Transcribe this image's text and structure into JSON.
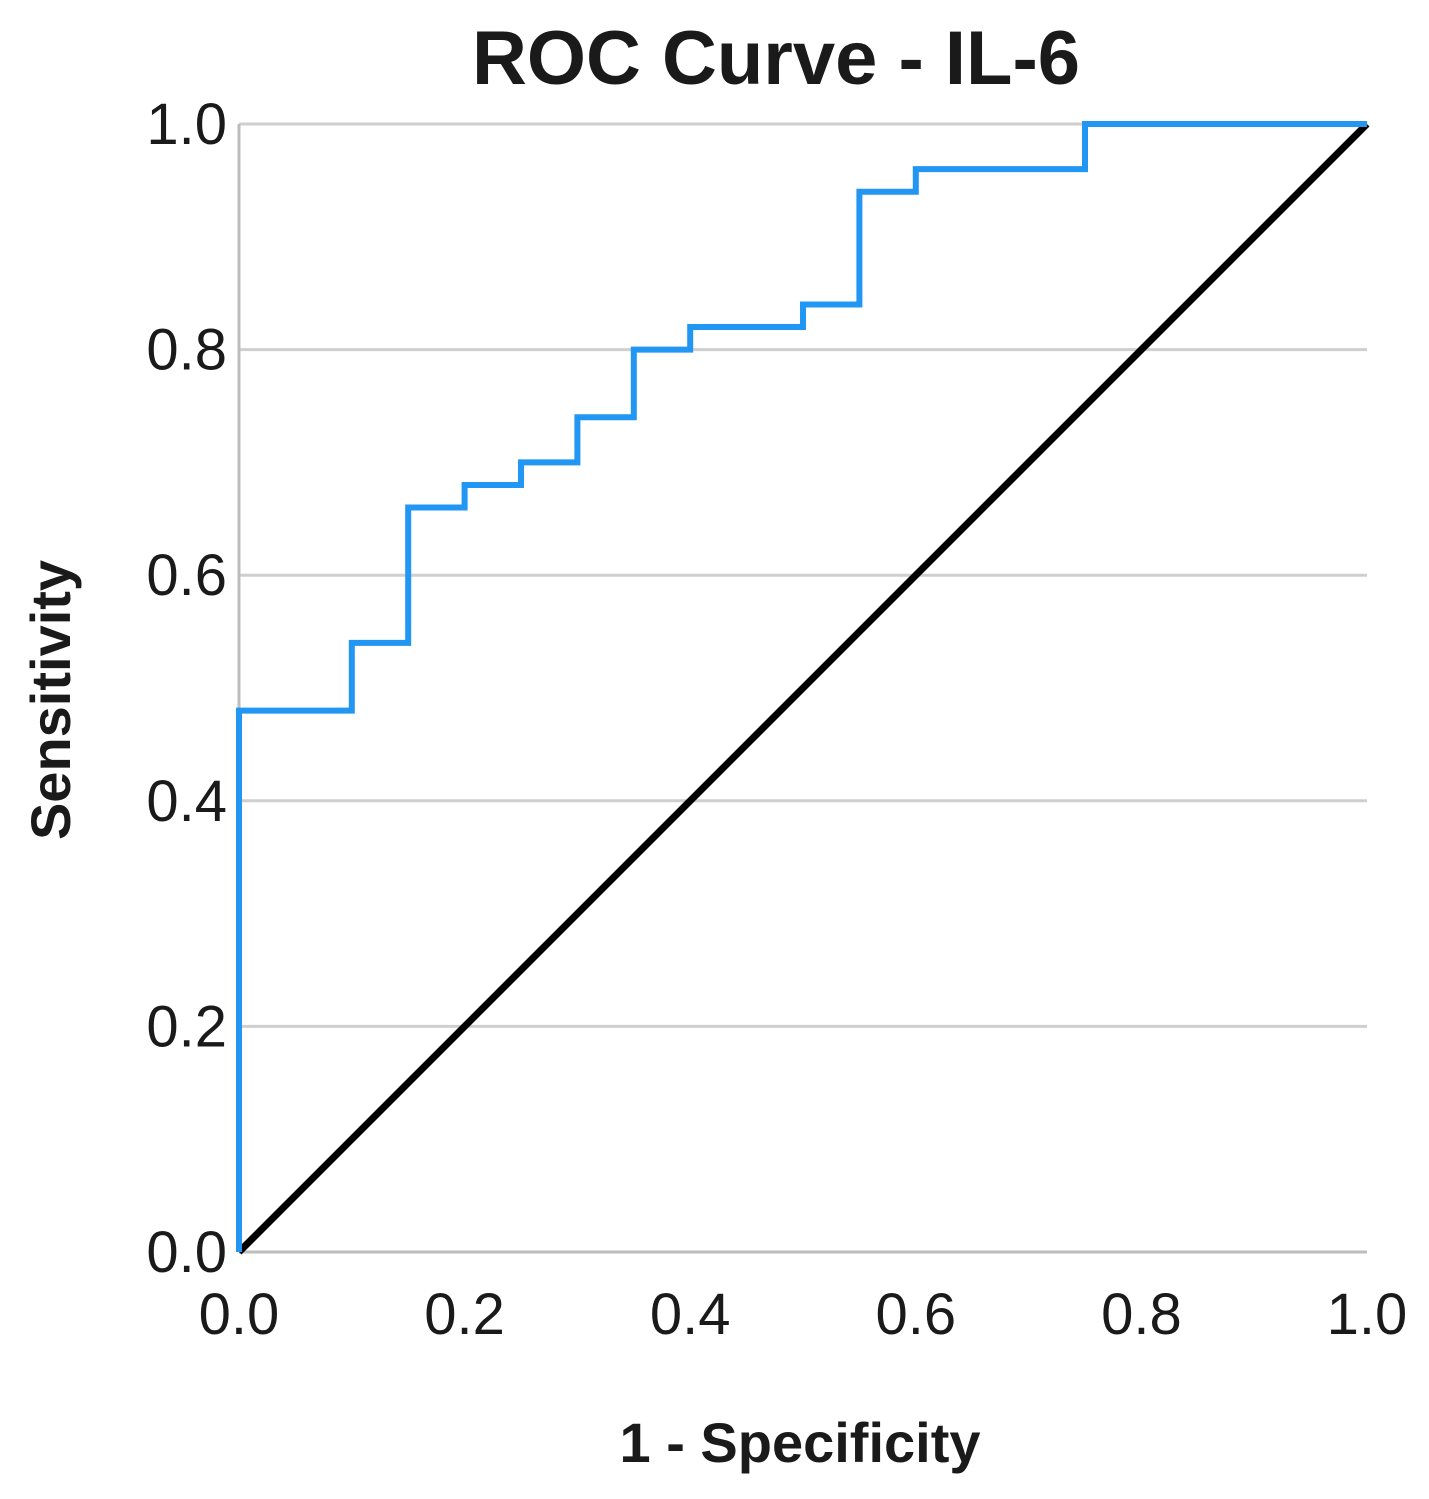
{
  "chart_data": {
    "type": "line",
    "title": "ROC Curve - IL-6",
    "xlabel": "1 - Specificity",
    "ylabel": "Sensitivity",
    "xlim": [
      0,
      1
    ],
    "ylim": [
      0,
      1
    ],
    "x_ticks": [
      "0.0",
      "0.2",
      "0.4",
      "0.6",
      "0.8",
      "1.0"
    ],
    "y_ticks": [
      "0.0",
      "0.2",
      "0.4",
      "0.6",
      "0.8",
      "1.0"
    ],
    "grid": "horizontal",
    "legend": "none",
    "series": [
      {
        "name": "IL-6",
        "color": "#2196f3",
        "style": "step",
        "x": [
          0.0,
          0.0,
          0.1,
          0.1,
          0.15,
          0.15,
          0.2,
          0.2,
          0.25,
          0.25,
          0.3,
          0.3,
          0.35,
          0.35,
          0.4,
          0.4,
          0.5,
          0.5,
          0.55,
          0.55,
          0.6,
          0.6,
          0.75,
          0.75,
          1.0
        ],
        "y": [
          0.0,
          0.48,
          0.48,
          0.54,
          0.54,
          0.66,
          0.66,
          0.68,
          0.68,
          0.7,
          0.7,
          0.74,
          0.74,
          0.8,
          0.8,
          0.82,
          0.82,
          0.84,
          0.84,
          0.94,
          0.94,
          0.96,
          0.96,
          1.0,
          1.0
        ]
      },
      {
        "name": "Reference Line",
        "color": "#000000",
        "style": "line",
        "x": [
          0.0,
          1.0
        ],
        "y": [
          0.0,
          1.0
        ]
      }
    ]
  }
}
